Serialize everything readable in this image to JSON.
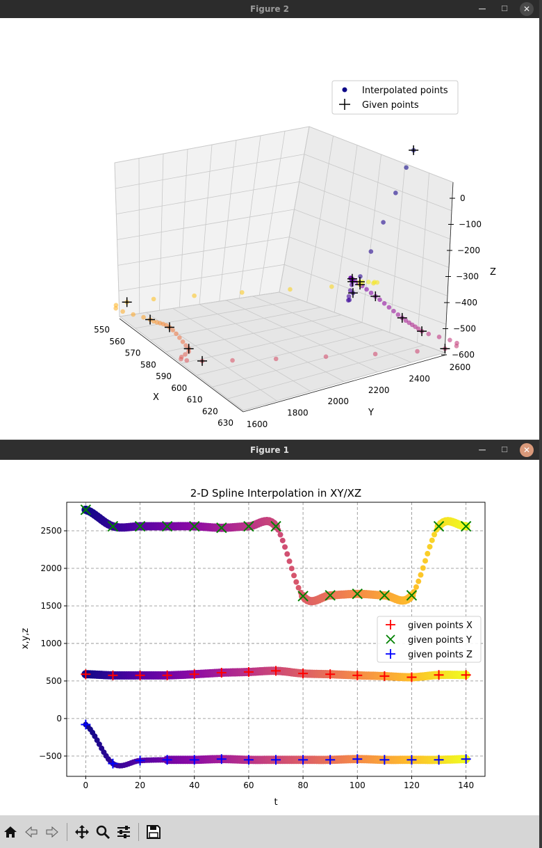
{
  "figure2": {
    "title": "Figure 2",
    "legend": [
      "Interpolated points",
      "Given points"
    ],
    "axis_labels": {
      "x": "X",
      "y": "Y",
      "z": "Z"
    },
    "x_ticks": [
      "550",
      "560",
      "570",
      "580",
      "590",
      "600",
      "610",
      "620",
      "630"
    ],
    "y_ticks": [
      "1600",
      "1800",
      "2000",
      "2200",
      "2400",
      "2600"
    ],
    "z_ticks": [
      "0",
      "−100",
      "−200",
      "−300",
      "−400",
      "−500",
      "−600"
    ]
  },
  "figure1": {
    "title": "Figure 1",
    "plot_title": "2-D Spline Interpolation in XY/XZ",
    "xlabel": "t",
    "ylabel": "x,y,z",
    "legend": [
      "given points X",
      "given points Y",
      "given points Z"
    ]
  },
  "window_buttons": {
    "minimize": "—",
    "maximize": "☐",
    "close": "✕"
  },
  "toolbar_icons": [
    "home-icon",
    "back-icon",
    "forward-icon",
    "pan-icon",
    "zoom-icon",
    "configure-icon",
    "save-icon"
  ],
  "colors": {
    "given_x": "#ff0000",
    "given_y": "#008000",
    "given_z": "#0000ff"
  },
  "chart_data": [
    {
      "type": "line",
      "title": "2-D Spline Interpolation in XY/XZ",
      "xlabel": "t",
      "ylabel": "x,y,z",
      "xlim": [
        -7,
        147
      ],
      "ylim": [
        -770,
        2880
      ],
      "x_ticks": [
        0,
        20,
        40,
        60,
        80,
        100,
        120,
        140
      ],
      "y_ticks": [
        -500,
        0,
        500,
        1000,
        1500,
        2000,
        2500
      ],
      "grid": true,
      "legend_position": "right",
      "colormap": "plasma",
      "t": [
        0,
        10,
        20,
        30,
        40,
        50,
        60,
        70,
        80,
        90,
        100,
        110,
        120,
        130,
        140
      ],
      "series": [
        {
          "name": "given points X",
          "marker": "+",
          "color": "#ff0000",
          "values": [
            590,
            575,
            575,
            575,
            590,
            610,
            620,
            635,
            600,
            590,
            575,
            565,
            550,
            580,
            580
          ]
        },
        {
          "name": "given points Y",
          "marker": "x",
          "color": "#008000",
          "values": [
            2780,
            2560,
            2560,
            2560,
            2560,
            2540,
            2560,
            2560,
            1630,
            1640,
            1660,
            1640,
            1640,
            2560,
            2560
          ]
        },
        {
          "name": "given points Z",
          "marker": "+",
          "color": "#0000ff",
          "values": [
            -80,
            -600,
            -560,
            -550,
            -550,
            -540,
            -550,
            -550,
            -550,
            -550,
            -540,
            -550,
            -550,
            -550,
            -540
          ]
        }
      ]
    },
    {
      "type": "scatter",
      "dimensions": 3,
      "xlabel": "X",
      "ylabel": "Y",
      "zlabel": "Z",
      "legend": [
        "Interpolated points",
        "Given points"
      ],
      "legend_position": "top-right",
      "xlim": [
        550,
        630
      ],
      "ylim": [
        1600,
        2600
      ],
      "zlim": [
        -600,
        0
      ],
      "colormap": "plasma"
    }
  ]
}
